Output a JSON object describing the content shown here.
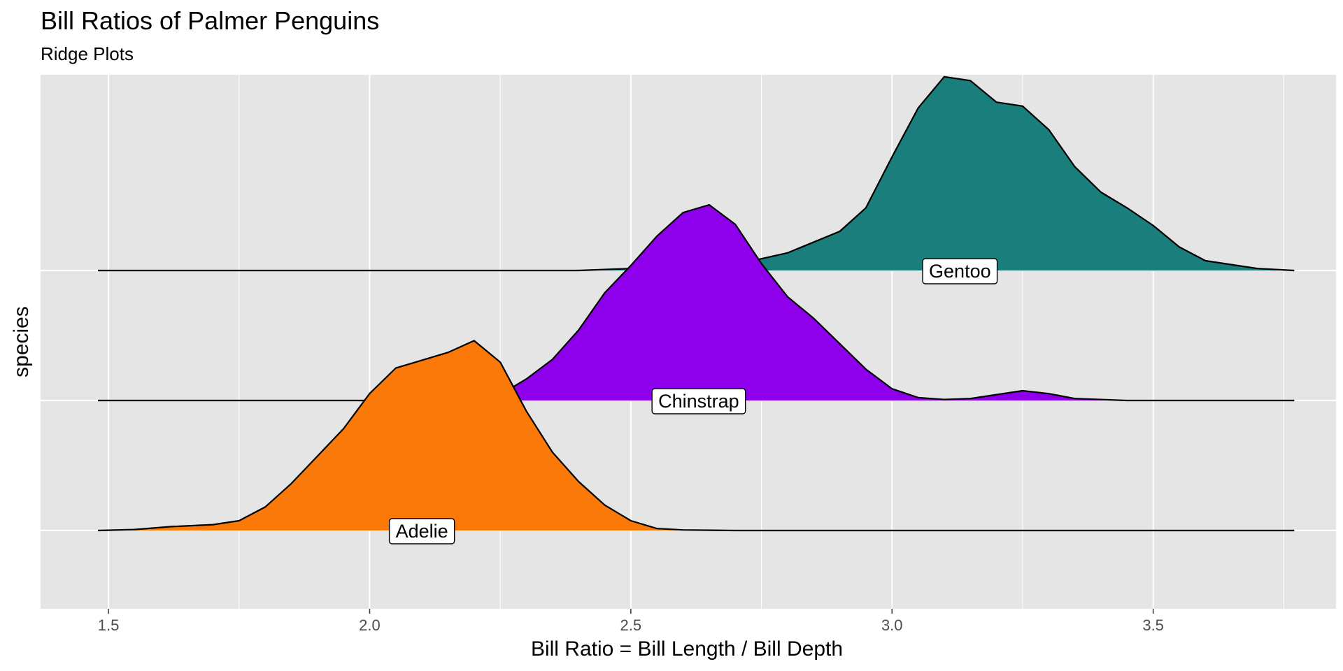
{
  "chart_data": {
    "type": "ridgeline",
    "title": "Bill Ratios of Palmer Penguins",
    "subtitle": "Ridge Plots",
    "xlabel": "Bill Ratio = Bill Length / Bill Depth",
    "ylabel": "species",
    "xlim": [
      1.37,
      3.85
    ],
    "x_ticks": [
      "1.5",
      "2.0",
      "2.5",
      "3.0",
      "3.5"
    ],
    "x_minor_ticks": [
      1.75,
      2.25,
      2.75,
      3.25,
      3.75
    ],
    "grid": true,
    "density_range": [
      1.48,
      3.77
    ],
    "panel_background": "#e5e5e5",
    "gridline_color": "#ffffff",
    "outline_color": "#000000",
    "series": [
      {
        "name": "Adelie",
        "label_x": 2.1,
        "color": "#fb7908",
        "points": [
          [
            1.48,
            0
          ],
          [
            1.55,
            0.005
          ],
          [
            1.62,
            0.02
          ],
          [
            1.7,
            0.03
          ],
          [
            1.75,
            0.05
          ],
          [
            1.8,
            0.12
          ],
          [
            1.85,
            0.24
          ],
          [
            1.9,
            0.38
          ],
          [
            1.95,
            0.52
          ],
          [
            2.0,
            0.7
          ],
          [
            2.05,
            0.83
          ],
          [
            2.1,
            0.87
          ],
          [
            2.15,
            0.91
          ],
          [
            2.2,
            0.97
          ],
          [
            2.25,
            0.86
          ],
          [
            2.3,
            0.61
          ],
          [
            2.35,
            0.4
          ],
          [
            2.4,
            0.25
          ],
          [
            2.45,
            0.13
          ],
          [
            2.5,
            0.05
          ],
          [
            2.55,
            0.01
          ],
          [
            2.6,
            0.003
          ],
          [
            2.7,
            0.0
          ],
          [
            3.77,
            0.0
          ]
        ]
      },
      {
        "name": "Chinstrap",
        "label_x": 2.63,
        "color": "#8e00eb",
        "points": [
          [
            1.48,
            0.0
          ],
          [
            2.2,
            0.0
          ],
          [
            2.25,
            0.03
          ],
          [
            2.3,
            0.11
          ],
          [
            2.35,
            0.21
          ],
          [
            2.4,
            0.36
          ],
          [
            2.45,
            0.55
          ],
          [
            2.5,
            0.69
          ],
          [
            2.55,
            0.84
          ],
          [
            2.6,
            0.96
          ],
          [
            2.65,
            1.0
          ],
          [
            2.7,
            0.9
          ],
          [
            2.75,
            0.7
          ],
          [
            2.8,
            0.53
          ],
          [
            2.85,
            0.42
          ],
          [
            2.9,
            0.29
          ],
          [
            2.95,
            0.16
          ],
          [
            3.0,
            0.06
          ],
          [
            3.05,
            0.015
          ],
          [
            3.1,
            0.005
          ],
          [
            3.15,
            0.01
          ],
          [
            3.2,
            0.03
          ],
          [
            3.25,
            0.05
          ],
          [
            3.3,
            0.035
          ],
          [
            3.35,
            0.01
          ],
          [
            3.45,
            0.0
          ],
          [
            3.77,
            0.0
          ]
        ]
      },
      {
        "name": "Gentoo",
        "label_x": 3.13,
        "color": "#1a7f7c",
        "points": [
          [
            1.48,
            0.0
          ],
          [
            2.4,
            0.0
          ],
          [
            2.5,
            0.01
          ],
          [
            2.6,
            0.02
          ],
          [
            2.7,
            0.03
          ],
          [
            2.8,
            0.09
          ],
          [
            2.9,
            0.2
          ],
          [
            2.95,
            0.32
          ],
          [
            3.0,
            0.58
          ],
          [
            3.05,
            0.83
          ],
          [
            3.1,
            0.99
          ],
          [
            3.15,
            0.97
          ],
          [
            3.2,
            0.86
          ],
          [
            3.25,
            0.84
          ],
          [
            3.3,
            0.72
          ],
          [
            3.35,
            0.53
          ],
          [
            3.4,
            0.4
          ],
          [
            3.45,
            0.32
          ],
          [
            3.5,
            0.23
          ],
          [
            3.55,
            0.12
          ],
          [
            3.6,
            0.05
          ],
          [
            3.65,
            0.03
          ],
          [
            3.7,
            0.01
          ],
          [
            3.77,
            0.0
          ]
        ]
      }
    ]
  }
}
